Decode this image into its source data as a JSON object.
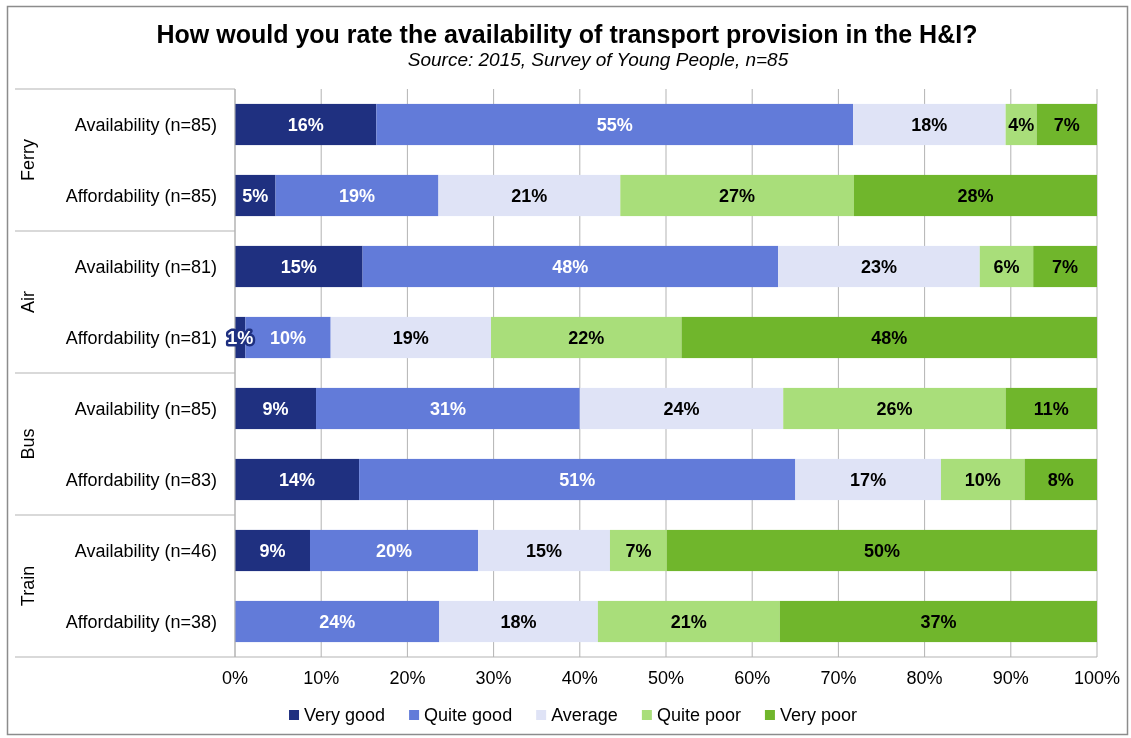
{
  "chart_data": {
    "type": "bar",
    "orientation": "horizontal",
    "stacked": true,
    "title": "How would you rate the availability of transport provision in the H&I?",
    "subtitle": "Source: 2015, Survey of Young People, n=85",
    "categories": [
      "Availability (n=85)",
      "Affordability (n=85)",
      "Availability (n=81)",
      "Affordability (n=81)",
      "Availability (n=85)",
      "Affordability (n=83)",
      "Availability (n=46)",
      "Affordability (n=38)"
    ],
    "series": [
      {
        "name": "Very good",
        "color": "#1f3080",
        "values": [
          16.4,
          4.7,
          14.8,
          1.2,
          9.4,
          14.4,
          8.7,
          null
        ],
        "value_labels": [
          "16%",
          "5%",
          "15%",
          "1%",
          "9%",
          "14%",
          "9%",
          null
        ]
      },
      {
        "name": "Quite good",
        "color": "#627bd9",
        "values": [
          55.3,
          18.9,
          48.2,
          9.9,
          30.6,
          50.6,
          19.5,
          23.7
        ],
        "value_labels": [
          "55%",
          "19%",
          "48%",
          "10%",
          "31%",
          "51%",
          "20%",
          "24%"
        ]
      },
      {
        "name": "Average",
        "color": "#dfe3f6",
        "values": [
          17.7,
          21.1,
          23.4,
          18.6,
          23.6,
          16.9,
          15.3,
          18.4
        ],
        "value_labels": [
          "18%",
          "21%",
          "23%",
          "19%",
          "24%",
          "17%",
          "15%",
          "18%"
        ]
      },
      {
        "name": "Quite poor",
        "color": "#a9de7a",
        "values": [
          3.6,
          27.1,
          6.2,
          22.1,
          25.8,
          9.7,
          6.6,
          21.1
        ],
        "value_labels": [
          "4%",
          "27%",
          "6%",
          "22%",
          "26%",
          "10%",
          "7%",
          "21%"
        ]
      },
      {
        "name": "Very poor",
        "color": "#70b62c",
        "values": [
          7,
          28.2,
          7.4,
          48.2,
          10.6,
          8.4,
          49.9,
          36.8
        ],
        "value_labels": [
          "7%",
          "28%",
          "7%",
          "48%",
          "11%",
          "8%",
          "50%",
          "37%"
        ]
      }
    ],
    "xlim": [
      0,
      100
    ],
    "xticks": [
      {
        "value": 0,
        "label": "0%"
      },
      {
        "value": 10,
        "label": "10%"
      },
      {
        "value": 20,
        "label": "20%"
      },
      {
        "value": 30,
        "label": "30%"
      },
      {
        "value": 40,
        "label": "40%"
      },
      {
        "value": 50,
        "label": "50%"
      },
      {
        "value": 60,
        "label": "60%"
      },
      {
        "value": 70,
        "label": "70%"
      },
      {
        "value": 80,
        "label": "80%"
      },
      {
        "value": 90,
        "label": "90%"
      },
      {
        "value": 100,
        "label": "100%"
      }
    ],
    "grid": "x",
    "legend": "bottom",
    "annotations": [
      "Ferry",
      "Air",
      "Bus",
      "Train"
    ]
  }
}
